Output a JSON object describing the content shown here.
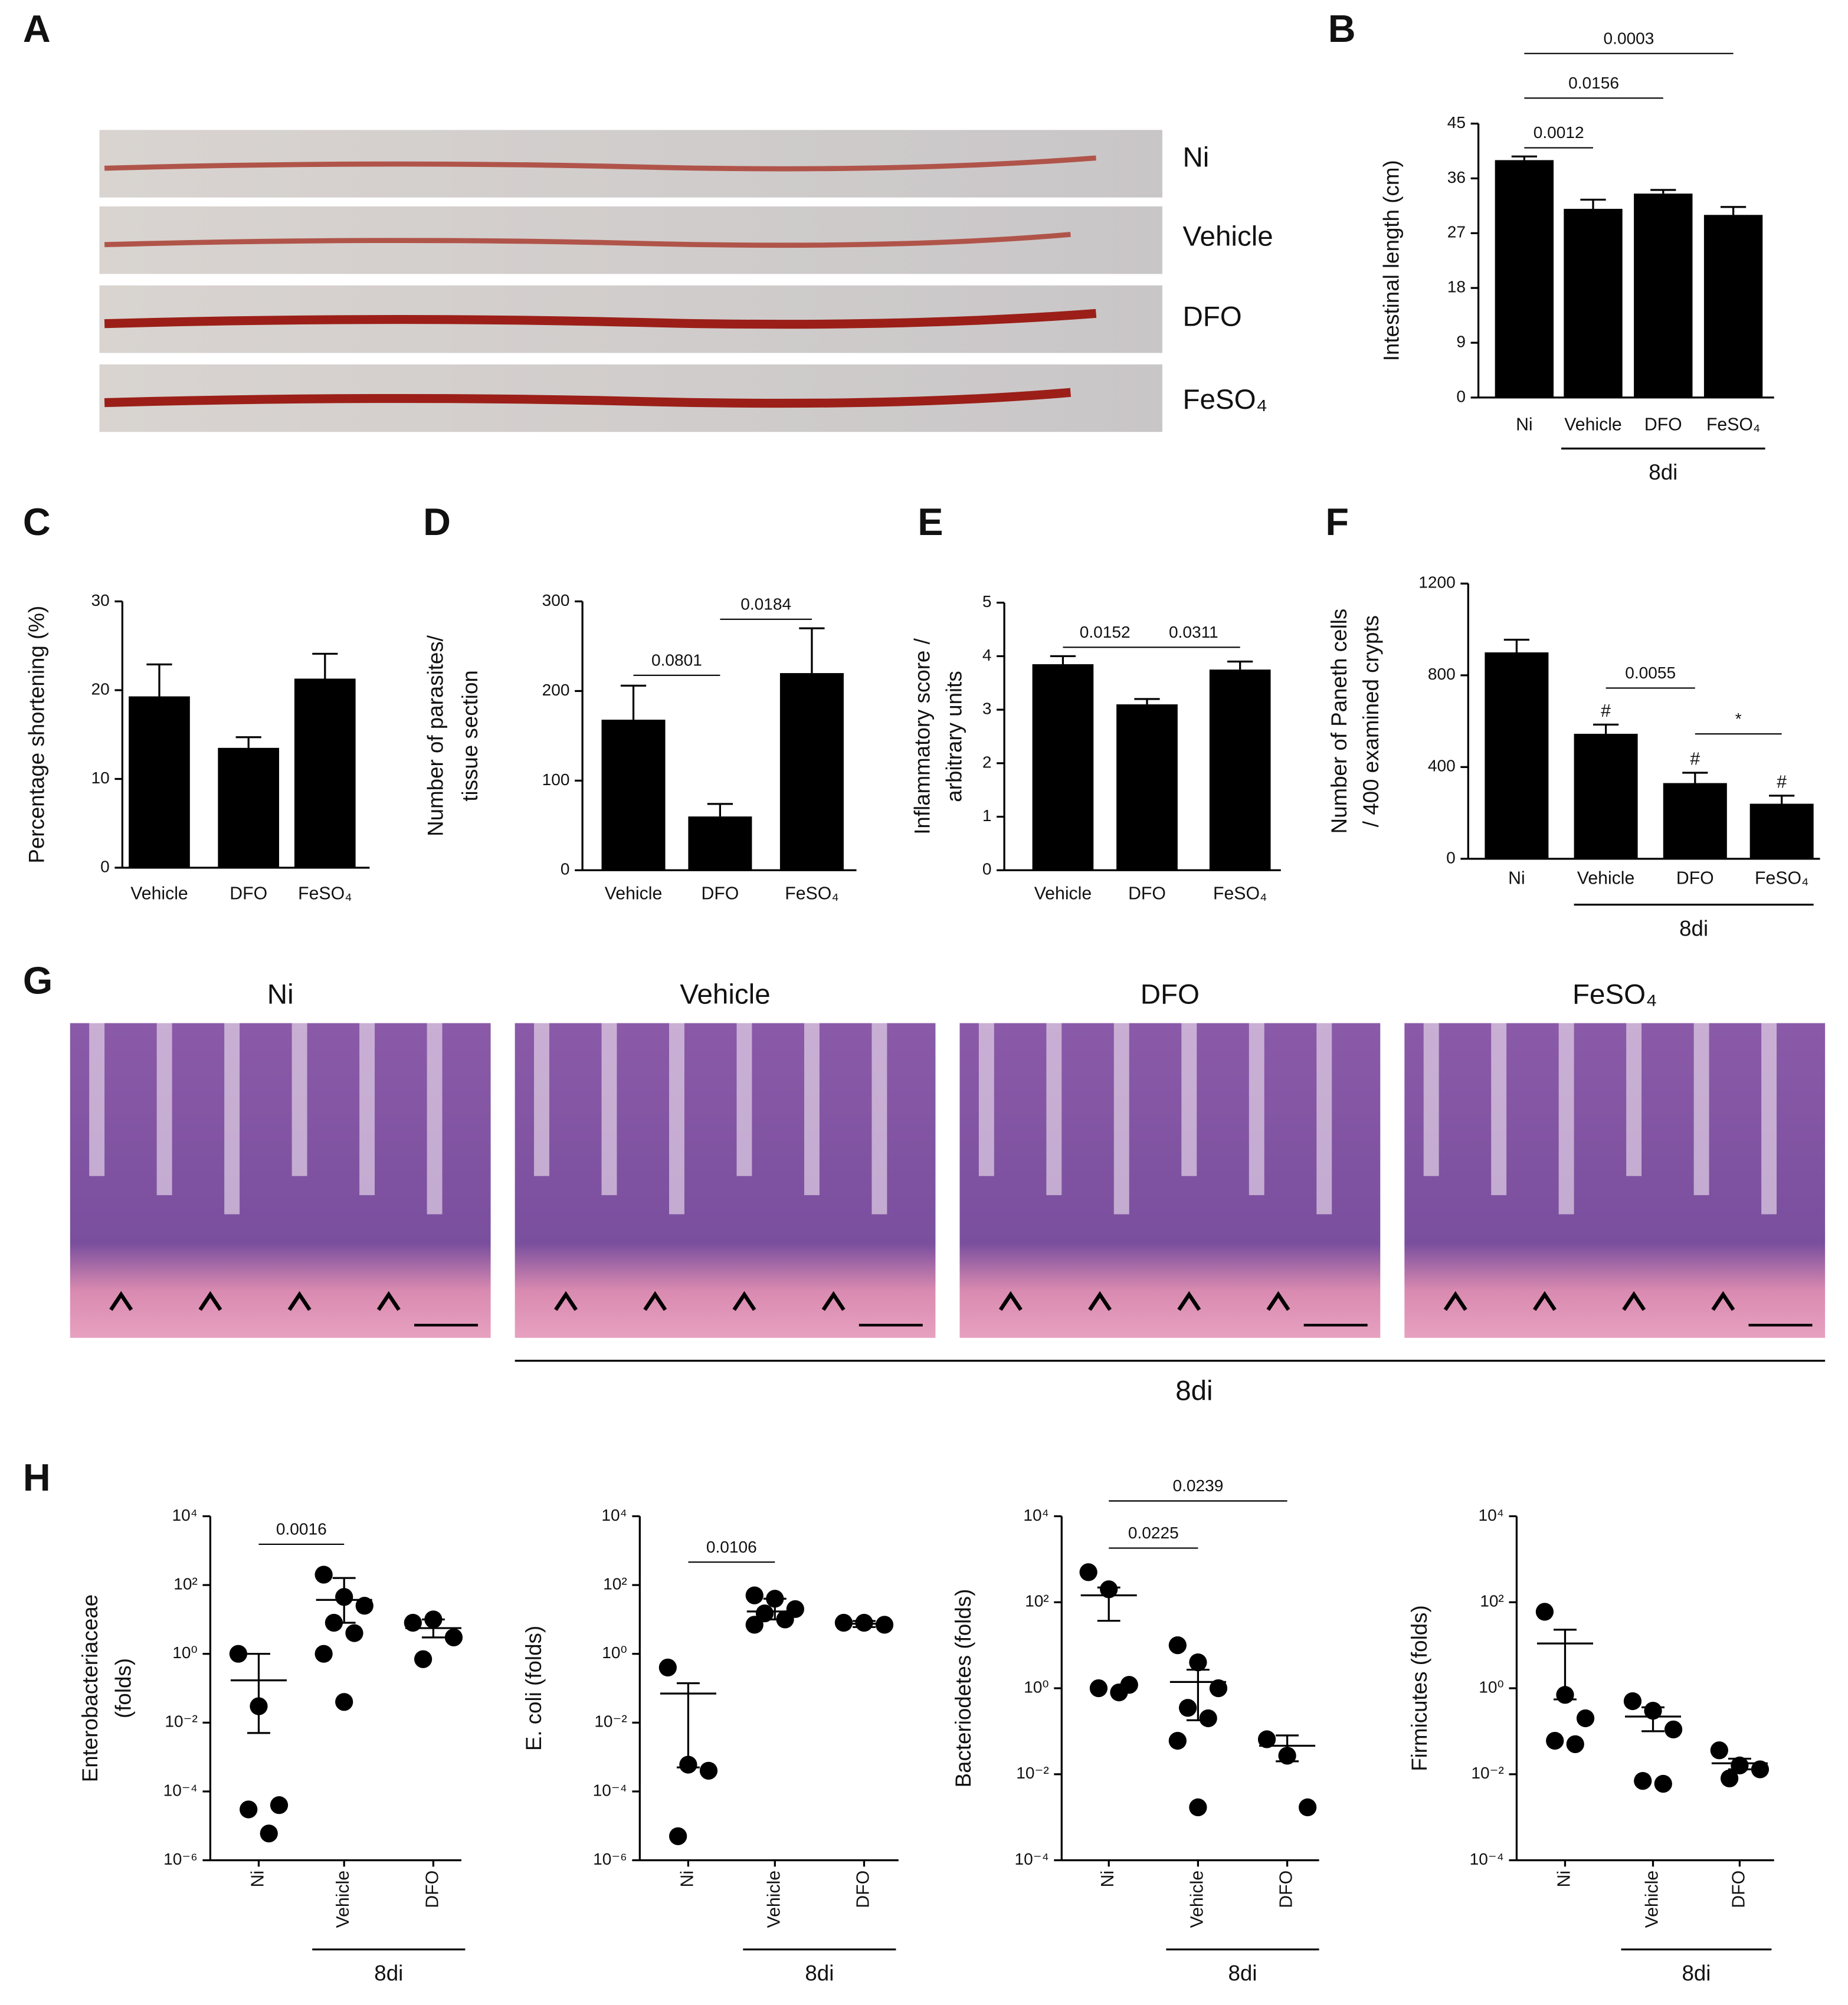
{
  "photos": {
    "A": {
      "panel": "A",
      "labels": [
        "Ni",
        "Vehicle",
        "DFO",
        "FeSO₄"
      ]
    },
    "G": {
      "panel": "G",
      "titles": [
        "Ni",
        "Vehicle",
        "DFO",
        "FeSO₄"
      ],
      "group": "8di"
    }
  },
  "chart_data": [
    {
      "type": "bar",
      "panel": "B",
      "ylabel": [
        "Intestinal length (cm)"
      ],
      "categories": [
        "Ni",
        "Vehicle",
        "DFO",
        "FeSO₄"
      ],
      "values": [
        39,
        31,
        33.5,
        30
      ],
      "errors": [
        0.6,
        1.5,
        0.6,
        1.3
      ],
      "color": "#000000",
      "ylim": [
        0,
        45
      ],
      "yticks": [
        0,
        9,
        18,
        27,
        36,
        45
      ],
      "comparisons": [
        {
          "label": "0.0012",
          "between": [
            "Ni",
            "Vehicle"
          ]
        },
        {
          "label": "0.0156",
          "between": [
            "Ni",
            "DFO"
          ]
        },
        {
          "label": "0.0003",
          "between": [
            "Ni",
            "FeSO₄"
          ]
        }
      ],
      "group": {
        "label": "8di",
        "span": [
          "Vehicle",
          "FeSO₄"
        ]
      }
    },
    {
      "type": "bar",
      "panel": "C",
      "ylabel": [
        "Percentage shortening (%)"
      ],
      "categories": [
        "Vehicle",
        "DFO",
        "FeSO₄"
      ],
      "values": [
        19.3,
        13.5,
        21.3
      ],
      "errors": [
        3.6,
        1.2,
        2.8
      ],
      "color": "#000000",
      "ylim": [
        0,
        30
      ],
      "yticks": [
        0,
        10,
        20,
        30
      ]
    },
    {
      "type": "bar",
      "panel": "D",
      "ylabel": [
        "Number of parasites/",
        "tissue section"
      ],
      "categories": [
        "Vehicle",
        "DFO",
        "FeSO₄"
      ],
      "values": [
        168,
        60,
        220
      ],
      "errors": [
        38,
        14,
        50
      ],
      "color": "#000000",
      "ylim": [
        0,
        300
      ],
      "yticks": [
        0,
        100,
        200,
        300
      ],
      "comparisons": [
        {
          "label": "0.0801",
          "between": [
            "Vehicle",
            "DFO"
          ]
        },
        {
          "label": "0.0184",
          "between": [
            "DFO",
            "FeSO₄"
          ]
        }
      ]
    },
    {
      "type": "bar",
      "panel": "E",
      "ylabel": [
        "Inflammatory score /",
        "arbitrary units"
      ],
      "categories": [
        "Vehicle",
        "DFO",
        "FeSO₄"
      ],
      "values": [
        3.85,
        3.1,
        3.75
      ],
      "errors": [
        0.15,
        0.1,
        0.15
      ],
      "color": "#000000",
      "ylim": [
        0,
        5
      ],
      "yticks": [
        0,
        1,
        2,
        3,
        4,
        5
      ],
      "comparisons": [
        {
          "label": "0.0152",
          "between": [
            "Vehicle",
            "DFO"
          ]
        },
        {
          "label": "0.0311",
          "between": [
            "DFO",
            "FeSO₄"
          ]
        }
      ]
    },
    {
      "type": "bar",
      "panel": "F",
      "ylabel": [
        "Number of Paneth cells",
        "/ 400 examined crypts"
      ],
      "categories": [
        "Ni",
        "Vehicle",
        "DFO",
        "FeSO₄"
      ],
      "values": [
        900,
        545,
        330,
        240
      ],
      "errors": [
        55,
        40,
        45,
        35
      ],
      "value_markers": [
        null,
        "#",
        "#",
        "#"
      ],
      "color": "#000000",
      "ylim": [
        0,
        1200
      ],
      "yticks": [
        0,
        400,
        800,
        1200
      ],
      "comparisons": [
        {
          "label": "0.0055",
          "between": [
            "Vehicle",
            "DFO"
          ]
        },
        {
          "label": "*",
          "between": [
            "DFO",
            "FeSO₄"
          ]
        }
      ],
      "group": {
        "label": "8di",
        "span": [
          "Vehicle",
          "FeSO₄"
        ]
      }
    },
    {
      "type": "dotplot",
      "panel": "H",
      "ylabel": [
        "Enterobacteriaceae",
        "(folds)"
      ],
      "log_scale": true,
      "categories": [
        "Ni",
        "Vehicle",
        "DFO"
      ],
      "points": [
        [
          1,
          0.03,
          4e-05,
          3e-05,
          6e-06
        ],
        [
          200,
          45,
          25,
          8,
          4,
          1,
          0.04
        ],
        [
          8,
          10,
          3,
          0.7
        ]
      ],
      "means": [
        0.17,
        37,
        5.6
      ],
      "err_high": [
        1,
        160,
        10
      ],
      "err_low": [
        0.005,
        8,
        3
      ],
      "color": "#000000",
      "ylim": [
        1e-06,
        10000
      ],
      "yticks": [
        {
          "value": 1e-06,
          "label": "10⁻⁶"
        },
        {
          "value": 0.0001,
          "label": "10⁻⁴"
        },
        {
          "value": 0.01,
          "label": "10⁻²"
        },
        {
          "value": 1,
          "label": "10⁰"
        },
        {
          "value": 100,
          "label": "10²"
        },
        {
          "value": 10000,
          "label": "10⁴"
        }
      ],
      "comparisons": [
        {
          "label": "0.0016",
          "between": [
            "Ni",
            "Vehicle"
          ]
        }
      ],
      "group": {
        "label": "8di",
        "span": [
          "Vehicle",
          "DFO"
        ]
      }
    },
    {
      "type": "dotplot",
      "ylabel": [
        "E. coli (folds)"
      ],
      "log_scale": true,
      "categories": [
        "Ni",
        "Vehicle",
        "DFO"
      ],
      "points": [
        [
          0.4,
          0.0006,
          0.0004,
          5e-06
        ],
        [
          50,
          40,
          20,
          15,
          10,
          7
        ],
        [
          8,
          8,
          7
        ]
      ],
      "means": [
        0.07,
        17,
        7.5
      ],
      "err_high": [
        0.14,
        40,
        9
      ],
      "err_low": [
        0.0005,
        10,
        6
      ],
      "color": "#000000",
      "ylim": [
        1e-06,
        10000
      ],
      "yticks": [
        {
          "value": 1e-06,
          "label": "10⁻⁶"
        },
        {
          "value": 0.0001,
          "label": "10⁻⁴"
        },
        {
          "value": 0.01,
          "label": "10⁻²"
        },
        {
          "value": 1,
          "label": "10⁰"
        },
        {
          "value": 100,
          "label": "10²"
        },
        {
          "value": 10000,
          "label": "10⁴"
        }
      ],
      "comparisons": [
        {
          "label": "0.0106",
          "between": [
            "Ni",
            "Vehicle"
          ]
        }
      ],
      "group": {
        "label": "8di",
        "span": [
          "Vehicle",
          "DFO"
        ]
      }
    },
    {
      "type": "dotplot",
      "ylabel": [
        "Bacteriodetes (folds)"
      ],
      "log_scale": true,
      "categories": [
        "Ni",
        "Vehicle",
        "DFO"
      ],
      "points": [
        [
          500,
          200,
          1.2,
          1,
          0.8
        ],
        [
          10,
          4,
          1,
          0.35,
          0.2,
          0.06,
          0.0017
        ],
        [
          0.065,
          0.027,
          0.0017
        ]
      ],
      "means": [
        145,
        1.4,
        0.046
      ],
      "err_high": [
        220,
        2.7,
        0.08
      ],
      "err_low": [
        37,
        0.18,
        0.02
      ],
      "color": "#000000",
      "ylim": [
        0.0001,
        10000
      ],
      "yticks": [
        {
          "value": 0.0001,
          "label": "10⁻⁴"
        },
        {
          "value": 0.01,
          "label": "10⁻²"
        },
        {
          "value": 1,
          "label": "10⁰"
        },
        {
          "value": 100,
          "label": "10²"
        },
        {
          "value": 10000,
          "label": "10⁴"
        }
      ],
      "comparisons": [
        {
          "label": "0.0225",
          "between": [
            "Ni",
            "Vehicle"
          ]
        },
        {
          "label": "0.0239",
          "between": [
            "Ni",
            "DFO"
          ]
        }
      ],
      "group": {
        "label": "8di",
        "span": [
          "Vehicle",
          "DFO"
        ]
      }
    },
    {
      "type": "dotplot",
      "ylabel": [
        "Firmicutes (folds)"
      ],
      "log_scale": true,
      "categories": [
        "Ni",
        "Vehicle",
        "DFO"
      ],
      "points": [
        [
          60,
          0.7,
          0.2,
          0.06,
          0.05
        ],
        [
          0.5,
          0.3,
          0.11,
          0.007,
          0.006
        ],
        [
          0.036,
          0.016,
          0.013,
          0.008
        ]
      ],
      "means": [
        11,
        0.22,
        0.018
      ],
      "err_high": [
        23,
        0.36,
        0.023
      ],
      "err_low": [
        0.55,
        0.1,
        0.013
      ],
      "color": "#000000",
      "ylim": [
        0.0001,
        10000
      ],
      "yticks": [
        {
          "value": 0.0001,
          "label": "10⁻⁴"
        },
        {
          "value": 0.01,
          "label": "10⁻²"
        },
        {
          "value": 1,
          "label": "10⁰"
        },
        {
          "value": 100,
          "label": "10²"
        },
        {
          "value": 10000,
          "label": "10⁴"
        }
      ],
      "group": {
        "label": "8di",
        "span": [
          "Vehicle",
          "DFO"
        ]
      }
    }
  ]
}
